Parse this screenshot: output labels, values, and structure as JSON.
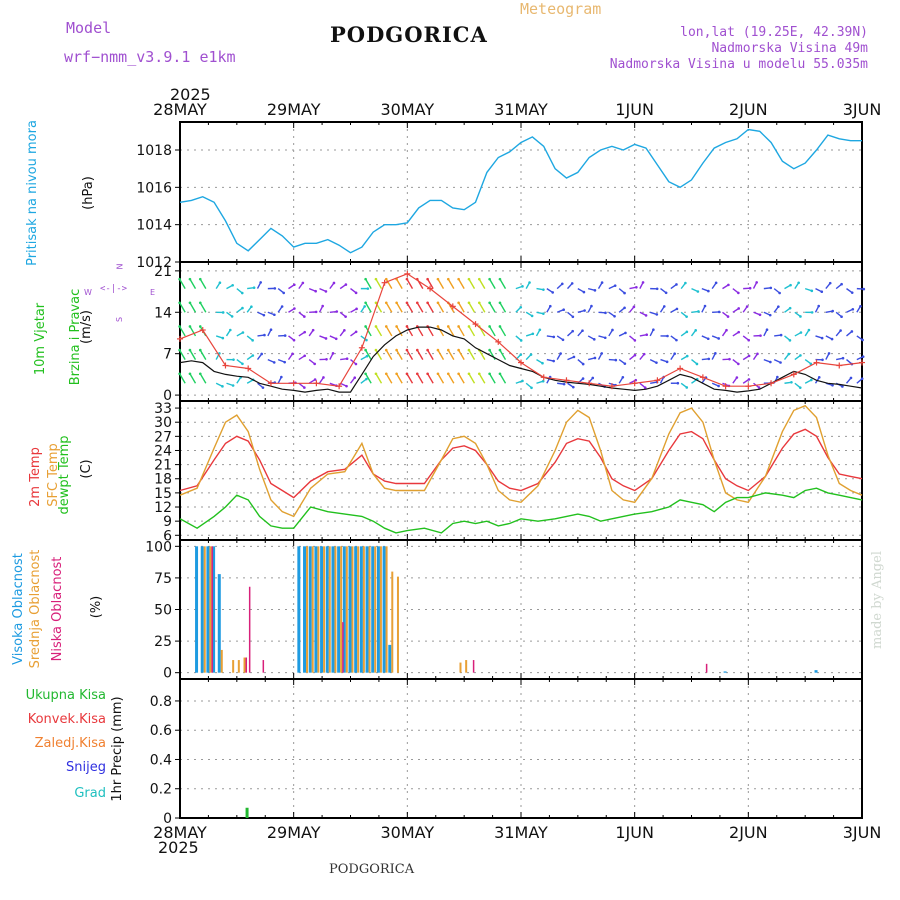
{
  "header": {
    "model_label": "Model",
    "model_name": "wrf−nmm_v3.9.1  e1km",
    "city": "PODGORICA",
    "meteogram": "Meteogram",
    "lonlat": "lon,lat (19.25E, 42.39N)",
    "elevation": "Nadmorska Visina 49m",
    "model_elevation": "Nadmorska Visina u modelu 55.035m",
    "year_top": "2025",
    "year_bottom": "2025",
    "footer_city": "PODGORICA",
    "credit": "made by Angel"
  },
  "panel_labels": {
    "pressure": "Pritisak na nivou mora",
    "pressure_unit": "(hPa)",
    "wind_line1": "10m Vjetar",
    "wind_line2": "Brzina i Pravac",
    "wind_unit": "(m/s)",
    "compass_n": "N",
    "compass_s": "S",
    "compass_w": "W",
    "compass_e": "E",
    "temp_2m": "2m Temp",
    "temp_sfc": "SFC Temp",
    "temp_dew": "dewpt Temp",
    "temp_unit": "(C)",
    "cloud_high": "Visoka Oblacnost",
    "cloud_mid": "Srednja Oblacnost",
    "cloud_low": "Niska Oblacnost",
    "cloud_unit": "(%)",
    "precip_total": "Ukupna Kisa",
    "precip_conv": "Konvek.Kisa",
    "precip_frz": "Zaledj.Kisa",
    "precip_snow": "Snijeg",
    "precip_hail": "Grad",
    "precip_axis": "1hr Precip (mm)"
  },
  "colors": {
    "pressure": "#1ea7e1",
    "wind_speed": "#111111",
    "wind_gust": "#e8453c",
    "temp_2m": "#e8383c",
    "temp_sfc": "#e0a030",
    "temp_dew": "#22c01e",
    "cloud_high": "#1e9be1",
    "cloud_mid": "#e8a035",
    "cloud_low": "#d8207a",
    "precip_total": "#22b830",
    "precip_conv": "#e8383c",
    "precip_frz": "#f08030",
    "precip_snow": "#3030e0",
    "precip_hail": "#20c0c0",
    "model_text": "#a050d0",
    "meteogram_text": "#e8b870"
  },
  "x_axis": {
    "day_labels": [
      "28MAY",
      "29MAY",
      "30MAY",
      "31MAY",
      "1JUN",
      "2JUN",
      "3JUN"
    ]
  },
  "chart_data": [
    {
      "type": "line",
      "id": "pressure",
      "ylabel": "(hPa)",
      "ylim": [
        1012,
        1019.5
      ],
      "yticks": [
        1012,
        1014,
        1016,
        1018
      ],
      "grid": true,
      "series": [
        {
          "name": "Pritisak na nivou mora",
          "x": [
            0,
            0.1,
            0.2,
            0.3,
            0.4,
            0.5,
            0.6,
            0.7,
            0.8,
            0.9,
            1.0,
            1.1,
            1.2,
            1.3,
            1.4,
            1.5,
            1.6,
            1.7,
            1.8,
            1.9,
            2.0,
            2.1,
            2.2,
            2.3,
            2.4,
            2.5,
            2.6,
            2.7,
            2.8,
            2.9,
            3.0,
            3.1,
            3.2,
            3.3,
            3.4,
            3.5,
            3.6,
            3.7,
            3.8,
            3.9,
            4.0,
            4.1,
            4.2,
            4.3,
            4.4,
            4.5,
            4.6,
            4.7,
            4.8,
            4.9,
            5.0,
            5.1,
            5.2,
            5.3,
            5.4,
            5.5,
            5.6,
            5.7,
            5.8,
            5.9,
            6.0
          ],
          "values": [
            1015.2,
            1015.3,
            1015.5,
            1015.2,
            1014.2,
            1013.0,
            1012.6,
            1013.2,
            1013.8,
            1013.4,
            1012.8,
            1013.0,
            1013.0,
            1013.2,
            1012.9,
            1012.5,
            1012.8,
            1013.6,
            1014.0,
            1014.0,
            1014.1,
            1014.9,
            1015.3,
            1015.3,
            1014.9,
            1014.8,
            1015.2,
            1016.8,
            1017.6,
            1017.9,
            1018.4,
            1018.7,
            1018.2,
            1017.0,
            1016.5,
            1016.8,
            1017.6,
            1018.0,
            1018.2,
            1018.0,
            1018.3,
            1018.1,
            1017.2,
            1016.3,
            1016.0,
            1016.4,
            1017.3,
            1018.1,
            1018.4,
            1018.6,
            1019.1,
            1019.0,
            1018.4,
            1017.4,
            1017.0,
            1017.3,
            1018.0,
            1018.8,
            1018.6,
            1018.5,
            1018.5
          ]
        }
      ]
    },
    {
      "type": "line",
      "id": "wind",
      "ylabel": "(m/s)",
      "ylim": [
        -1,
        22.5
      ],
      "yticks": [
        0,
        7,
        14,
        21
      ],
      "grid": true,
      "series": [
        {
          "name": "speed",
          "x": [
            0,
            0.1,
            0.2,
            0.3,
            0.4,
            0.5,
            0.6,
            0.7,
            0.8,
            0.9,
            1.0,
            1.1,
            1.2,
            1.3,
            1.4,
            1.5,
            1.6,
            1.7,
            1.8,
            1.9,
            2.0,
            2.1,
            2.2,
            2.3,
            2.4,
            2.5,
            2.6,
            2.7,
            2.8,
            2.9,
            3.0,
            3.1,
            3.2,
            3.3,
            3.4,
            3.5,
            3.6,
            3.7,
            3.8,
            3.9,
            4.0,
            4.1,
            4.2,
            4.3,
            4.4,
            4.5,
            4.6,
            4.7,
            4.8,
            4.9,
            5.0,
            5.1,
            5.2,
            5.3,
            5.4,
            5.5,
            5.6,
            5.7,
            5.8,
            5.9,
            6.0
          ],
          "values": [
            5.5,
            5.8,
            5.5,
            4.0,
            3.5,
            3.2,
            3.0,
            2.0,
            1.5,
            1.0,
            0.8,
            0.5,
            0.8,
            1.0,
            0.5,
            0.5,
            3.5,
            6.5,
            8.5,
            10.0,
            11.0,
            11.5,
            11.5,
            11.0,
            10.0,
            9.5,
            8.0,
            7.0,
            6.0,
            5.0,
            4.5,
            4.0,
            3.0,
            2.5,
            2.2,
            2.0,
            1.8,
            1.5,
            1.2,
            1.0,
            0.8,
            1.0,
            1.5,
            2.5,
            3.5,
            3.0,
            2.0,
            1.0,
            0.8,
            0.5,
            0.7,
            1.0,
            2.0,
            3.0,
            4.0,
            3.5,
            2.5,
            2.0,
            1.8,
            1.5,
            1.2
          ]
        },
        {
          "name": "gust",
          "x": [
            0,
            0.2,
            0.4,
            0.6,
            0.8,
            1.0,
            1.2,
            1.4,
            1.6,
            1.8,
            2.0,
            2.2,
            2.4,
            2.6,
            2.8,
            3.0,
            3.2,
            3.4,
            3.6,
            3.8,
            4.0,
            4.2,
            4.4,
            4.6,
            4.8,
            5.0,
            5.2,
            5.4,
            5.6,
            5.8,
            6.0
          ],
          "values": [
            9.5,
            11.0,
            5.0,
            4.5,
            2.0,
            2.0,
            2.0,
            1.5,
            8.0,
            19.0,
            20.5,
            18.0,
            15.0,
            12.0,
            9.0,
            5.5,
            3.0,
            2.5,
            2.0,
            1.5,
            2.0,
            2.5,
            4.5,
            3.0,
            1.5,
            1.5,
            2.0,
            3.5,
            5.5,
            5.0,
            5.5
          ]
        }
      ]
    },
    {
      "type": "line",
      "id": "temperature",
      "ylabel": "(C)",
      "ylim": [
        5,
        34.5
      ],
      "yticks": [
        6,
        9,
        12,
        15,
        18,
        21,
        24,
        27,
        30,
        33
      ],
      "grid": true,
      "series": [
        {
          "name": "2m Temp",
          "x": [
            0,
            0.15,
            0.3,
            0.4,
            0.5,
            0.6,
            0.7,
            0.8,
            0.9,
            1.0,
            1.15,
            1.3,
            1.45,
            1.6,
            1.7,
            1.8,
            1.9,
            2.0,
            2.15,
            2.3,
            2.4,
            2.5,
            2.6,
            2.7,
            2.8,
            2.9,
            3.0,
            3.15,
            3.3,
            3.4,
            3.5,
            3.6,
            3.7,
            3.8,
            3.9,
            4.0,
            4.15,
            4.3,
            4.4,
            4.5,
            4.6,
            4.7,
            4.8,
            4.9,
            5.0,
            5.15,
            5.3,
            5.4,
            5.5,
            5.6,
            5.7,
            5.8,
            5.9,
            6.0
          ],
          "values": [
            15.5,
            16.5,
            22.0,
            25.5,
            27.0,
            26.0,
            22.0,
            17.0,
            15.5,
            14.0,
            17.5,
            19.5,
            20.0,
            23.0,
            19.0,
            17.5,
            17.0,
            17.0,
            17.0,
            22.0,
            24.5,
            25.0,
            24.0,
            21.0,
            17.5,
            16.0,
            15.5,
            17.0,
            21.5,
            25.5,
            26.5,
            26.0,
            22.5,
            18.0,
            16.5,
            15.5,
            18.0,
            24.0,
            27.5,
            28.0,
            26.5,
            22.0,
            18.0,
            16.5,
            15.5,
            18.5,
            24.5,
            27.5,
            28.5,
            27.0,
            22.5,
            19.0,
            18.5,
            18.0
          ]
        },
        {
          "name": "SFC Temp",
          "x": [
            0,
            0.15,
            0.3,
            0.4,
            0.5,
            0.6,
            0.7,
            0.8,
            0.9,
            1.0,
            1.15,
            1.3,
            1.45,
            1.6,
            1.7,
            1.8,
            1.9,
            2.0,
            2.15,
            2.3,
            2.4,
            2.5,
            2.6,
            2.7,
            2.8,
            2.9,
            3.0,
            3.15,
            3.3,
            3.4,
            3.5,
            3.6,
            3.7,
            3.8,
            3.9,
            4.0,
            4.15,
            4.3,
            4.4,
            4.5,
            4.6,
            4.7,
            4.8,
            4.9,
            5.0,
            5.15,
            5.3,
            5.4,
            5.5,
            5.6,
            5.7,
            5.8,
            5.9,
            6.0
          ],
          "values": [
            14.5,
            16.0,
            24.5,
            30.0,
            31.5,
            28.0,
            20.0,
            13.5,
            11.0,
            10.0,
            16.0,
            19.0,
            19.5,
            25.5,
            19.0,
            16.0,
            15.5,
            15.5,
            15.5,
            22.0,
            26.5,
            27.0,
            25.5,
            21.0,
            15.5,
            13.5,
            13.0,
            16.5,
            24.0,
            30.0,
            32.5,
            31.0,
            24.0,
            15.5,
            13.5,
            13.0,
            18.0,
            27.5,
            32.0,
            33.0,
            30.0,
            22.0,
            15.0,
            13.5,
            13.0,
            18.5,
            28.0,
            32.5,
            33.5,
            31.0,
            23.0,
            17.0,
            15.5,
            14.5
          ]
        },
        {
          "name": "dewpt Temp",
          "x": [
            0,
            0.15,
            0.3,
            0.4,
            0.5,
            0.6,
            0.7,
            0.8,
            0.9,
            1.0,
            1.15,
            1.3,
            1.45,
            1.6,
            1.7,
            1.8,
            1.9,
            2.0,
            2.15,
            2.3,
            2.4,
            2.5,
            2.6,
            2.7,
            2.8,
            2.9,
            3.0,
            3.15,
            3.3,
            3.4,
            3.5,
            3.6,
            3.7,
            3.8,
            3.9,
            4.0,
            4.15,
            4.3,
            4.4,
            4.5,
            4.6,
            4.7,
            4.8,
            4.9,
            5.0,
            5.15,
            5.3,
            5.4,
            5.5,
            5.6,
            5.7,
            5.8,
            5.9,
            6.0
          ],
          "values": [
            9.5,
            7.5,
            10.0,
            12.0,
            14.5,
            13.5,
            10.0,
            8.0,
            7.5,
            7.5,
            12.0,
            11.0,
            10.5,
            10.0,
            9.0,
            7.5,
            6.5,
            7.0,
            7.5,
            6.5,
            8.5,
            9.0,
            8.5,
            9.0,
            8.0,
            8.5,
            9.5,
            9.0,
            9.5,
            10.0,
            10.5,
            10.0,
            9.0,
            9.5,
            10.0,
            10.5,
            11.0,
            12.0,
            13.5,
            13.0,
            12.5,
            11.0,
            13.0,
            14.0,
            14.0,
            15.0,
            14.5,
            14.0,
            15.5,
            16.0,
            15.0,
            14.5,
            14.0,
            13.5
          ]
        }
      ]
    },
    {
      "type": "bar",
      "id": "clouds",
      "ylabel": "(%)",
      "ylim": [
        -5,
        105
      ],
      "yticks": [
        0,
        25,
        50,
        75,
        100
      ],
      "grid": true,
      "series": [
        {
          "name": "Visoka Oblacnost",
          "x": [
            0.15,
            0.2,
            0.25,
            0.3,
            0.35,
            1.05,
            1.1,
            1.15,
            1.2,
            1.25,
            1.3,
            1.35,
            1.4,
            1.45,
            1.5,
            1.55,
            1.6,
            1.65,
            1.7,
            1.75,
            1.8,
            1.85,
            4.8,
            5.6
          ],
          "values": [
            100,
            100,
            100,
            100,
            78,
            100,
            100,
            100,
            100,
            100,
            100,
            100,
            100,
            100,
            100,
            100,
            100,
            100,
            100,
            100,
            100,
            22,
            1,
            2
          ]
        },
        {
          "name": "Srednja Oblacnost",
          "x": [
            0.2,
            0.25,
            0.35,
            0.45,
            0.5,
            0.55,
            1.1,
            1.15,
            1.2,
            1.25,
            1.3,
            1.35,
            1.4,
            1.45,
            1.5,
            1.55,
            1.6,
            1.65,
            1.7,
            1.75,
            1.8,
            1.85,
            1.9,
            2.45,
            2.5
          ],
          "values": [
            100,
            100,
            18,
            10,
            10,
            12,
            100,
            100,
            100,
            100,
            100,
            100,
            100,
            100,
            100,
            100,
            100,
            100,
            100,
            100,
            100,
            80,
            76,
            8,
            10
          ]
        },
        {
          "name": "Niska Oblacnost",
          "x": [
            0.25,
            0.55,
            0.58,
            0.7,
            1.4,
            2.55,
            4.6
          ],
          "values": [
            100,
            12,
            68,
            10,
            40,
            10,
            7
          ]
        }
      ]
    },
    {
      "type": "bar",
      "id": "precip",
      "ylabel": "1hr Precip (mm)",
      "ylim": [
        0,
        0.95
      ],
      "yticks": [
        0,
        0.2,
        0.4,
        0.6,
        0.8
      ],
      "grid": true,
      "series": [
        {
          "name": "Ukupna Kisa",
          "x": [
            0.59
          ],
          "values": [
            0.07
          ]
        }
      ]
    }
  ]
}
